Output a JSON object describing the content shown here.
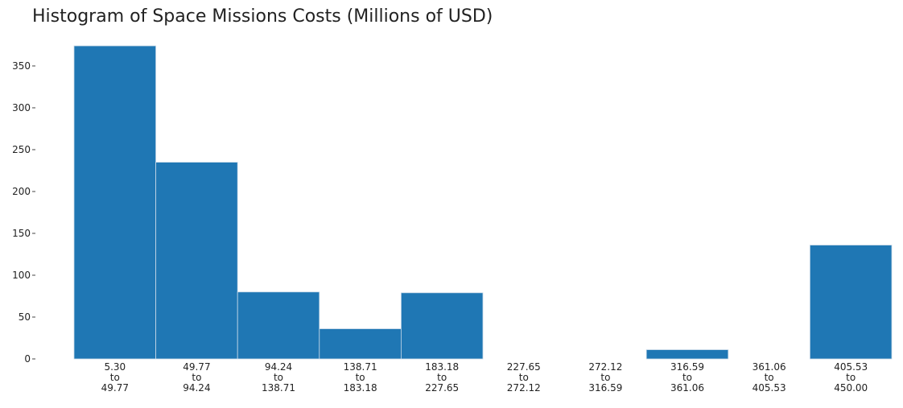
{
  "chart_data": {
    "type": "bar",
    "title": "Histogram of Space Missions Costs (Millions of USD)",
    "xlabel": "",
    "ylabel": "",
    "bin_labels": [
      [
        "5.30",
        "to",
        "49.77"
      ],
      [
        "49.77",
        "to",
        "94.24"
      ],
      [
        "94.24",
        "to",
        "138.71"
      ],
      [
        "138.71",
        "to",
        "183.18"
      ],
      [
        "183.18",
        "to",
        "227.65"
      ],
      [
        "227.65",
        "to",
        "272.12"
      ],
      [
        "272.12",
        "to",
        "316.59"
      ],
      [
        "316.59",
        "to",
        "361.06"
      ],
      [
        "361.06",
        "to",
        "405.53"
      ],
      [
        "405.53",
        "to",
        "450.00"
      ]
    ],
    "values": [
      374,
      235,
      80,
      36,
      79,
      0,
      0,
      11,
      0,
      136
    ],
    "yticks": [
      0,
      50,
      100,
      150,
      200,
      250,
      300,
      350
    ],
    "ylim": [
      0,
      374
    ],
    "bar_color": "#1f77b4",
    "edge_color": "#c9d9e8",
    "grid": false,
    "legend": "none"
  }
}
